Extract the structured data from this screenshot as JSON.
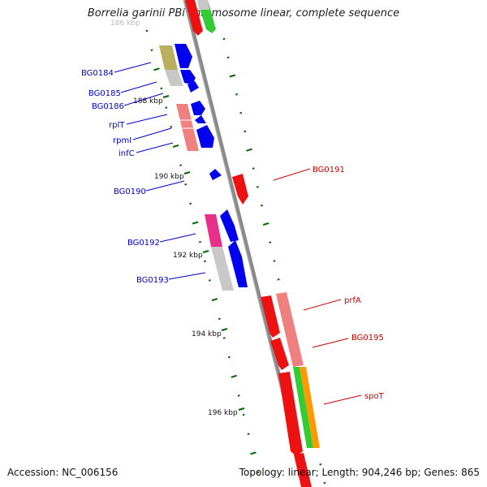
{
  "title": "Borrelia garinii PBi chromosome linear, complete sequence",
  "footer": {
    "accession": "Accession: NC_006156",
    "summary": "Topology: linear; Length: 904,246 bp; Genes: 865"
  },
  "ruler": {
    "cut_off_label": "186 kbp",
    "ticks": [
      {
        "label": "188 kbp"
      },
      {
        "label": "190 kbp"
      },
      {
        "label": "192 kbp"
      },
      {
        "label": "194 kbp"
      },
      {
        "label": "196 kbp"
      }
    ]
  },
  "gene_labels_left": [
    "BG0184",
    "BG0185",
    "BG0186",
    "rplT",
    "rpmI",
    "infC",
    "BG0190",
    "BG0192",
    "BG0193"
  ],
  "gene_labels_right": [
    "BG0191",
    "prfA",
    "BG0195",
    "spoT"
  ],
  "colors": {
    "forward_cds": "#0000ee",
    "reverse_cds": "#ee0000",
    "rna_pink": "#f08080",
    "gray_feature": "#c0c0c0",
    "olive_feature": "#b8b060",
    "magenta_feature": "#e8308a",
    "green_feature": "#30c030",
    "orange_feature": "#ff9900",
    "ruler_tick": "#006600",
    "backbone": "#888888"
  }
}
